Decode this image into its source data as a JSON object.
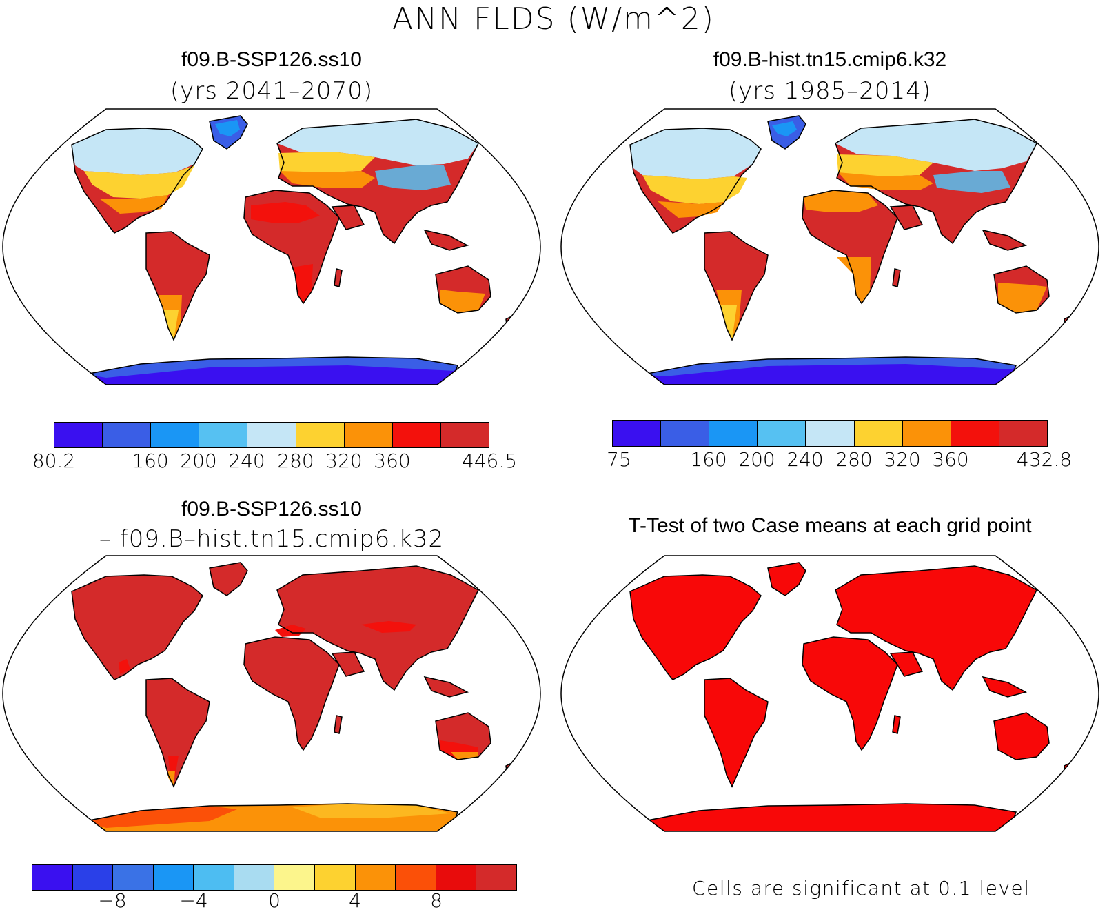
{
  "title": "ANN FLDS (W/m^2)",
  "panels": {
    "top_left": {
      "title": "f09.B-SSP126.ss10",
      "subtitle": "(yrs 2041–2070)"
    },
    "top_right": {
      "title": "f09.B-hist.tn15.cmip6.k32",
      "subtitle": "(yrs 1985–2014)"
    },
    "bottom_left": {
      "title": "f09.B-SSP126.ss10",
      "subtitle": "– f09.B–hist.tn15.cmip6.k32"
    },
    "bottom_right": {
      "title": "T-Test of two Case means at each grid point",
      "note": "Cells are significant at 0.1 level"
    }
  },
  "colorbars": {
    "top_left": {
      "colors": [
        "#3a10f0",
        "#3a5ee6",
        "#1a96f5",
        "#56c1f2",
        "#c5e6f6",
        "#fdd230",
        "#fb9208",
        "#f3110c",
        "#d42a2a"
      ],
      "labels": [
        "80.2",
        "160",
        "200",
        "240",
        "280",
        "320",
        "360",
        "446.5"
      ]
    },
    "top_right": {
      "colors": [
        "#3a10f0",
        "#3a5ee6",
        "#1a96f5",
        "#56c1f2",
        "#c5e6f6",
        "#fdd230",
        "#fb9208",
        "#f3110c",
        "#d42a2a"
      ],
      "labels": [
        "75",
        "160",
        "200",
        "240",
        "280",
        "320",
        "360",
        "432.8"
      ]
    },
    "bottom_left": {
      "colors": [
        "#3a10f0",
        "#2a40e8",
        "#3a72e6",
        "#1a96f5",
        "#4dbdf2",
        "#a9dcf1",
        "#fcf58c",
        "#fdd230",
        "#fb9208",
        "#fb5008",
        "#e80c0c",
        "#d42a2a"
      ],
      "labels": [
        "−8",
        "−4",
        "0",
        "4",
        "8"
      ]
    }
  },
  "map_colors": {
    "ocean": "#ffffff",
    "coast": "#000000",
    "warm_dark": "#d42a2a",
    "warm_red": "#f3110c",
    "orange": "#fb9208",
    "yellow": "#fdd230",
    "pale_blue": "#c5e6f6",
    "light_blue": "#56c1f2",
    "blue": "#3a5ee6",
    "deep_blue": "#3a10f0",
    "significant": "#f80808"
  }
}
